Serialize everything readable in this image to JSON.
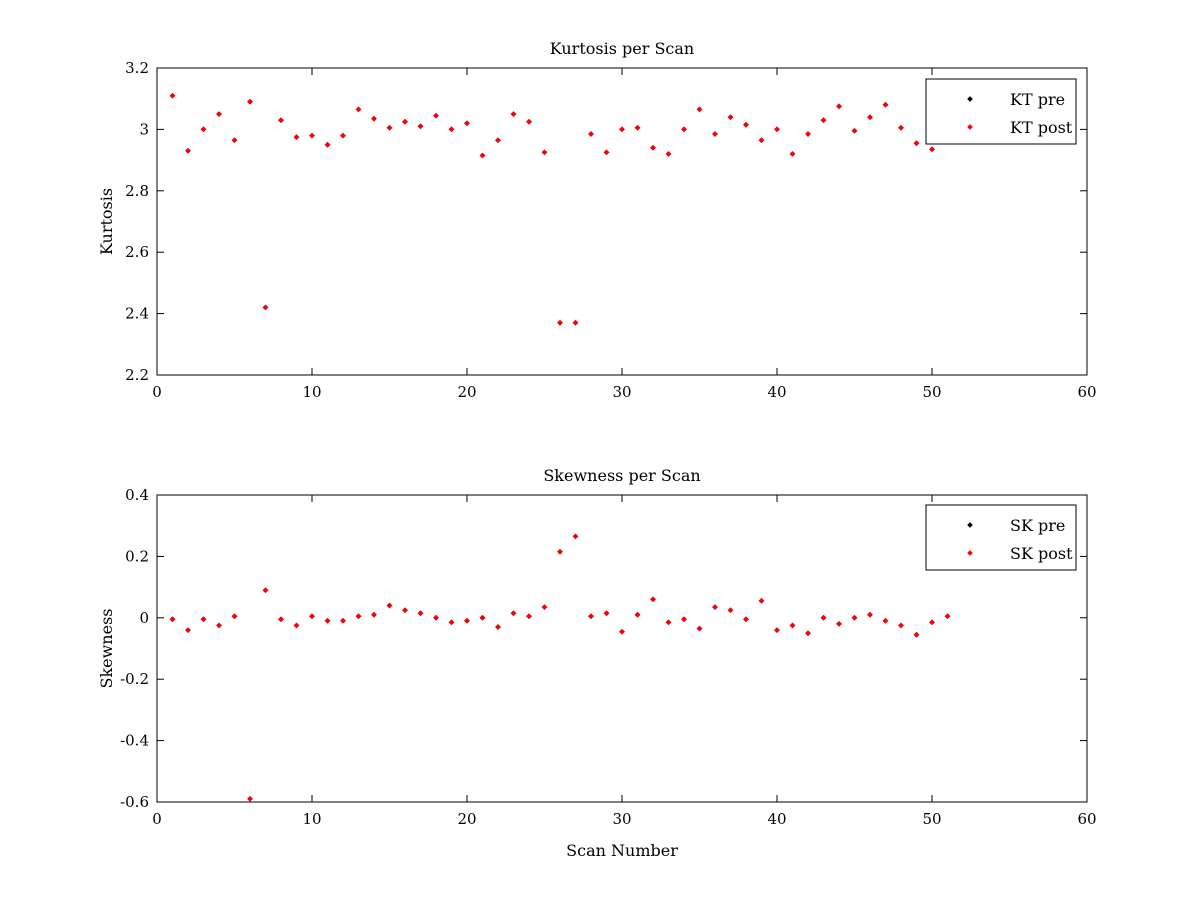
{
  "colors": {
    "pre": "#000000",
    "post": "#ff0000",
    "axes": "#000000",
    "background": "#ffffff"
  },
  "chart_data": [
    {
      "type": "scatter",
      "title": "Kurtosis per Scan",
      "xlabel": "",
      "ylabel": "Kurtosis",
      "xlim": [
        0,
        60
      ],
      "ylim": [
        2.2,
        3.2
      ],
      "xticks": [
        0,
        10,
        20,
        30,
        40,
        50,
        60
      ],
      "yticks": [
        2.2,
        2.4,
        2.6,
        2.8,
        3,
        3.2
      ],
      "xtick_labels": [
        "0",
        "10",
        "20",
        "30",
        "40",
        "50",
        "60"
      ],
      "ytick_labels": [
        "2.2",
        "2.4",
        "2.6",
        "2.8",
        "3",
        "3.2"
      ],
      "grid": false,
      "legend_placement": "top-right",
      "series": [
        {
          "name": "KT pre",
          "color": "#000000",
          "x": [
            1,
            2,
            3,
            4,
            5,
            6,
            7,
            8,
            9,
            10,
            11,
            12,
            13,
            14,
            15,
            16,
            17,
            18,
            19,
            20,
            21,
            22,
            23,
            24,
            25,
            26,
            27,
            28,
            29,
            30,
            31,
            32,
            33,
            34,
            35,
            36,
            37,
            38,
            39,
            40,
            41,
            42,
            43,
            44,
            45,
            46,
            47,
            48,
            49,
            50
          ],
          "y": [
            3.11,
            2.93,
            3.0,
            3.05,
            2.965,
            3.09,
            2.42,
            3.03,
            2.975,
            2.98,
            2.95,
            2.98,
            3.065,
            3.035,
            3.005,
            3.025,
            3.01,
            3.045,
            3.0,
            3.02,
            2.915,
            2.965,
            3.05,
            3.025,
            2.925,
            2.37,
            2.37,
            2.985,
            2.925,
            3.0,
            3.005,
            2.94,
            2.92,
            3.0,
            3.065,
            2.985,
            3.04,
            3.015,
            2.965,
            3.0,
            2.92,
            2.985,
            3.03,
            3.075,
            2.995,
            3.04,
            3.08,
            3.005,
            2.955,
            2.935
          ]
        },
        {
          "name": "KT post",
          "color": "#ff0000",
          "x": [
            1,
            2,
            3,
            4,
            5,
            6,
            7,
            8,
            9,
            10,
            11,
            12,
            13,
            14,
            15,
            16,
            17,
            18,
            19,
            20,
            21,
            22,
            23,
            24,
            25,
            26,
            27,
            28,
            29,
            30,
            31,
            32,
            33,
            34,
            35,
            36,
            37,
            38,
            39,
            40,
            41,
            42,
            43,
            44,
            45,
            46,
            47,
            48,
            49,
            50
          ],
          "y": [
            3.11,
            2.93,
            3.0,
            3.05,
            2.965,
            3.09,
            2.42,
            3.03,
            2.975,
            2.98,
            2.95,
            2.98,
            3.065,
            3.035,
            3.005,
            3.025,
            3.01,
            3.045,
            3.0,
            3.02,
            2.915,
            2.965,
            3.05,
            3.025,
            2.925,
            2.37,
            2.37,
            2.985,
            2.925,
            3.0,
            3.005,
            2.94,
            2.92,
            3.0,
            3.065,
            2.985,
            3.04,
            3.015,
            2.965,
            3.0,
            2.92,
            2.985,
            3.03,
            3.075,
            2.995,
            3.04,
            3.08,
            3.005,
            2.955,
            2.935
          ]
        }
      ]
    },
    {
      "type": "scatter",
      "title": "Skewness per Scan",
      "xlabel": "Scan Number",
      "ylabel": "Skewness",
      "xlim": [
        0,
        60
      ],
      "ylim": [
        -0.6,
        0.4
      ],
      "xticks": [
        0,
        10,
        20,
        30,
        40,
        50,
        60
      ],
      "yticks": [
        -0.6,
        -0.4,
        -0.2,
        0,
        0.2,
        0.4
      ],
      "xtick_labels": [
        "0",
        "10",
        "20",
        "30",
        "40",
        "50",
        "60"
      ],
      "ytick_labels": [
        "-0.6",
        "-0.4",
        "-0.2",
        "0",
        "0.2",
        "0.4"
      ],
      "grid": false,
      "legend_placement": "top-right",
      "series": [
        {
          "name": "SK pre",
          "color": "#000000",
          "x": [
            1,
            2,
            3,
            4,
            5,
            6,
            7,
            8,
            9,
            10,
            11,
            12,
            13,
            14,
            15,
            16,
            17,
            18,
            19,
            20,
            21,
            22,
            23,
            24,
            25,
            26,
            27,
            28,
            29,
            30,
            31,
            32,
            33,
            34,
            35,
            36,
            37,
            38,
            39,
            40,
            41,
            42,
            43,
            44,
            45,
            46,
            47,
            48,
            49,
            50,
            51
          ],
          "y": [
            -0.005,
            -0.04,
            -0.005,
            -0.025,
            0.005,
            -0.59,
            0.09,
            -0.005,
            -0.025,
            0.005,
            -0.01,
            -0.01,
            0.005,
            0.01,
            0.04,
            0.025,
            0.015,
            0.0,
            -0.015,
            -0.01,
            0.0,
            -0.03,
            0.015,
            0.005,
            0.035,
            0.215,
            0.265,
            0.005,
            0.015,
            -0.045,
            0.01,
            0.06,
            -0.015,
            -0.005,
            -0.035,
            0.035,
            0.025,
            -0.005,
            0.055,
            -0.04,
            -0.025,
            -0.05,
            0.0,
            -0.02,
            0.0,
            0.01,
            -0.01,
            -0.025,
            -0.055,
            -0.015,
            0.005
          ]
        },
        {
          "name": "SK post",
          "color": "#ff0000",
          "x": [
            1,
            2,
            3,
            4,
            5,
            6,
            7,
            8,
            9,
            10,
            11,
            12,
            13,
            14,
            15,
            16,
            17,
            18,
            19,
            20,
            21,
            22,
            23,
            24,
            25,
            26,
            27,
            28,
            29,
            30,
            31,
            32,
            33,
            34,
            35,
            36,
            37,
            38,
            39,
            40,
            41,
            42,
            43,
            44,
            45,
            46,
            47,
            48,
            49,
            50,
            51
          ],
          "y": [
            -0.005,
            -0.04,
            -0.005,
            -0.025,
            0.005,
            -0.59,
            0.09,
            -0.005,
            -0.025,
            0.005,
            -0.01,
            -0.01,
            0.005,
            0.01,
            0.04,
            0.025,
            0.015,
            0.0,
            -0.015,
            -0.01,
            0.0,
            -0.03,
            0.015,
            0.005,
            0.035,
            0.215,
            0.265,
            0.005,
            0.015,
            -0.045,
            0.01,
            0.06,
            -0.015,
            -0.005,
            -0.035,
            0.035,
            0.025,
            -0.005,
            0.055,
            -0.04,
            -0.025,
            -0.05,
            0.0,
            -0.02,
            0.0,
            0.01,
            -0.01,
            -0.025,
            -0.055,
            -0.015,
            0.005
          ]
        }
      ]
    }
  ]
}
